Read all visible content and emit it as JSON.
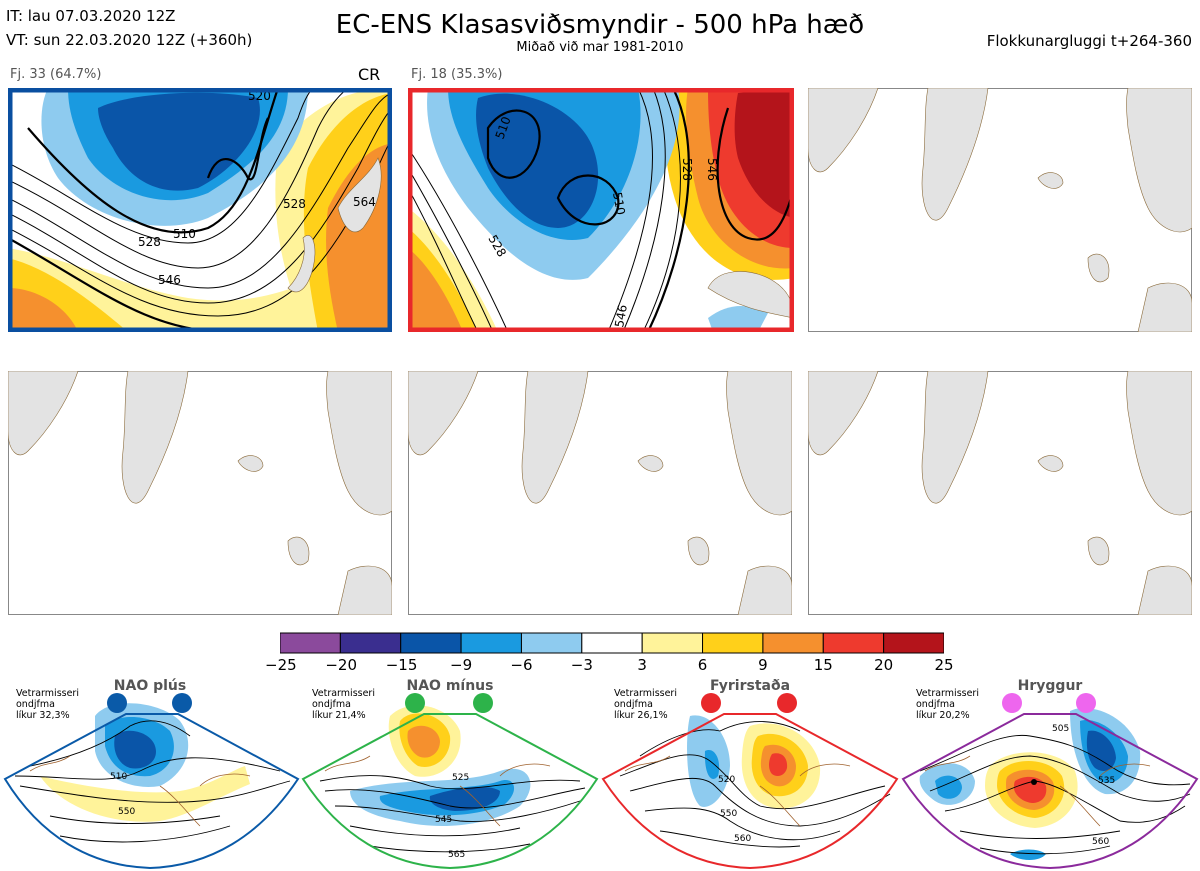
{
  "header": {
    "it_line": "IT: lau 07.03.2020 12Z",
    "vt_line": "VT: sun 22.03.2020 12Z  (+360h)",
    "title": "EC-ENS Klasasviðsmyndir - 500 hPa hæð",
    "subtitle": "Miðað við mar 1981-2010",
    "right": "Flokkunargluggi t+264-360"
  },
  "clusters": [
    {
      "label": "Fj. 33 (64.7%)",
      "tag": "CR",
      "border_color": "#0a4fa0",
      "contour_labels": [
        "510",
        "520",
        "528",
        "546",
        "564",
        "528"
      ]
    },
    {
      "label": "Fj. 18 (35.3%)",
      "tag": "",
      "border_color": "#e8282b",
      "contour_labels": [
        "510",
        "510",
        "528",
        "546",
        "528",
        "546"
      ]
    }
  ],
  "colorbar": {
    "ticks": [
      "−25",
      "−20",
      "−15",
      "−9",
      "−6",
      "−3",
      "3",
      "6",
      "9",
      "15",
      "20",
      "25"
    ],
    "colors": [
      "#8b4a9c",
      "#3a2e8f",
      "#0a55a8",
      "#1a9ae0",
      "#8ecbef",
      "#ffffff",
      "#fff39a",
      "#ffd01a",
      "#f5902e",
      "#ee3a2e",
      "#b4141b"
    ]
  },
  "regimes": [
    {
      "name": "NAO plús",
      "text": [
        "Vetrarmisseri",
        "ondjfma",
        "líkur 32,3%"
      ],
      "border": "#0a5aa8",
      "dot": "#0a5aa8",
      "contours": [
        "510",
        "550"
      ]
    },
    {
      "name": "NAO mínus",
      "text": [
        "Vetrarmisseri",
        "ondjfma",
        "líkur 21,4%"
      ],
      "border": "#2db34a",
      "dot": "#2db34a",
      "contours": [
        "525",
        "545",
        "565"
      ]
    },
    {
      "name": "Fyrirstaða",
      "text": [
        "Vetrarmisseri",
        "ondjfma",
        "líkur 26,1%"
      ],
      "border": "#e8282b",
      "dot": "#e8282b",
      "contours": [
        "520",
        "550",
        "560"
      ]
    },
    {
      "name": "Hryggur",
      "text": [
        "Vetrarmisseri",
        "ondjfma",
        "líkur 20,2%"
      ],
      "border": "#8b2a9c",
      "dot": "#ee66ee",
      "contours": [
        "505",
        "535",
        "560"
      ]
    }
  ]
}
